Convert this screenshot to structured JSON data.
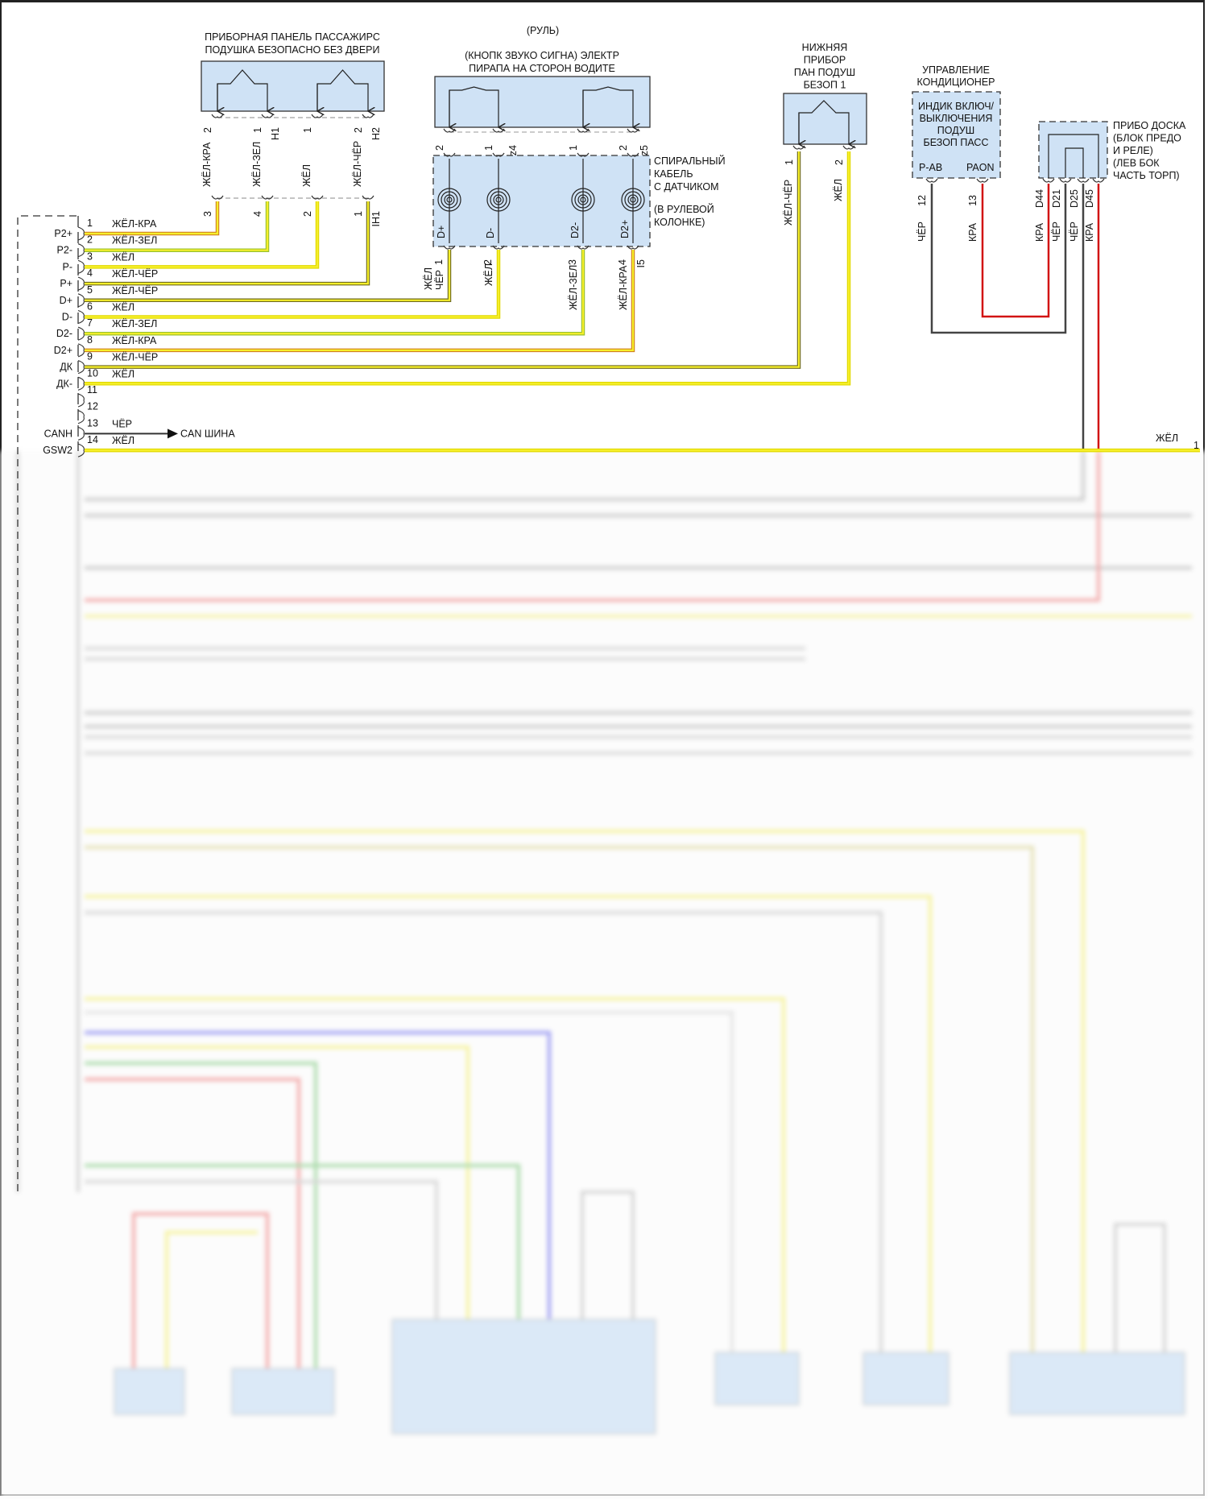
{
  "colors": {
    "box_fill": "#cfe2f5",
    "yellow": "#f2ea1c",
    "red": "#d21414",
    "black": "#444444",
    "tracer_red": "#d08020",
    "tracer_green": "#98c030",
    "tracer_black": "#6e6a20"
  },
  "passenger_panel": {
    "title_lines": [
      "ПРИБОРНАЯ ПАНЕЛЬ ПАССАЖИРС",
      "ПОДУШКА БЕЗОПАСНО БЕЗ ДВЕРИ"
    ],
    "upper_pins": [
      "2",
      "1",
      "1",
      "2"
    ],
    "upper_connectors": [
      "H1",
      "H2"
    ],
    "lower_pins": [
      "3",
      "4",
      "2",
      "1"
    ],
    "lower_connector": "IH1",
    "wires": [
      "ЖЁЛ-КРА",
      "ЖЁЛ-ЗЕЛ",
      "ЖЁЛ",
      "ЖЁЛ-ЧЁР"
    ]
  },
  "steering": {
    "title": "(РУЛЬ)",
    "horn_title_lines": [
      "(КНОПК ЗВУКО СИГНА) ЭЛЕКТР",
      "ПИРАПА НА СТОРОН ВОДИТЕ"
    ],
    "horn_pins": [
      "2",
      "1",
      "1",
      "2"
    ],
    "horn_connectors": [
      "z4",
      "z5"
    ]
  },
  "clock_spring": {
    "label_lines": [
      "СПИРАЛЬНЫЙ",
      "КАБЕЛЬ",
      "С ДАТЧИКОМ",
      "(В РУЛЕВОЙ",
      "КОЛОНКЕ)"
    ],
    "terminals": [
      "D+",
      "D-",
      "D2-",
      "D2+"
    ],
    "pins": [
      "1",
      "2",
      "3",
      "4"
    ],
    "connector": "I5",
    "wires": [
      [
        "ЖЁЛ",
        "ЧЁР"
      ],
      [
        "ЖЁЛ"
      ],
      [
        "ЖЁЛ-ЗЕЛ"
      ],
      [
        "ЖЁЛ-КРА"
      ]
    ]
  },
  "knee_airbag": {
    "title_lines": [
      "НИЖНЯЯ",
      "ПРИБОР",
      "ПАН ПОДУШ",
      "БЕЗОП 1"
    ],
    "pins": [
      "1",
      "2"
    ],
    "wires": [
      "ЖЁЛ-ЧЁР",
      "ЖЁЛ"
    ]
  },
  "ac_control": {
    "title_lines": [
      "УПРАВЛЕНИЕ",
      "КОНДИЦИОНЕР"
    ],
    "inner_lines": [
      "ИНДИК ВКЛЮЧ/",
      "ВЫКЛЮЧЕНИЯ",
      "ПОДУШ",
      "БЕЗОП ПАСС"
    ],
    "terminals": [
      "P-AB",
      "PAON"
    ],
    "pins": [
      "12",
      "13"
    ],
    "wires": [
      "ЧЁР",
      "КРА"
    ]
  },
  "instrument_panel": {
    "label_lines": [
      "ПРИБО ДОСКА",
      "(БЛОК ПРЕДО",
      "И РЕЛЕ)",
      "(ЛЕВ БОК",
      "ЧАСТЬ ТОРП)"
    ],
    "pins": [
      "D44",
      "D21",
      "D25",
      "D45"
    ],
    "wires": [
      "КРА",
      "ЧЁР",
      "ЧЁР",
      "КРА"
    ]
  },
  "airbag_module_connector": {
    "rows": [
      {
        "pin": "1",
        "terminal": "P2+",
        "wire": "ЖЁЛ-КРА"
      },
      {
        "pin": "2",
        "terminal": "P2-",
        "wire": "ЖЁЛ-ЗЕЛ"
      },
      {
        "pin": "3",
        "terminal": "P-",
        "wire": "ЖЁЛ"
      },
      {
        "pin": "4",
        "terminal": "P+",
        "wire": "ЖЁЛ-ЧЁР"
      },
      {
        "pin": "5",
        "terminal": "D+",
        "wire": "ЖЁЛ-ЧЁР"
      },
      {
        "pin": "6",
        "terminal": "D-",
        "wire": "ЖЁЛ"
      },
      {
        "pin": "7",
        "terminal": "D2-",
        "wire": "ЖЁЛ-ЗЕЛ"
      },
      {
        "pin": "8",
        "terminal": "D2+",
        "wire": "ЖЁЛ-КРА"
      },
      {
        "pin": "9",
        "terminal": "ДК",
        "wire": "ЖЁЛ-ЧЁР"
      },
      {
        "pin": "10",
        "terminal": "ДК-",
        "wire": "ЖЁЛ"
      },
      {
        "pin": "11",
        "terminal": "",
        "wire": ""
      },
      {
        "pin": "12",
        "terminal": "",
        "wire": ""
      },
      {
        "pin": "13",
        "terminal": "CANH",
        "wire": "ЧЁР"
      },
      {
        "pin": "14",
        "terminal": "GSW2",
        "wire": "ЖЁЛ"
      }
    ],
    "can_bus_label": "CAN ШИНА"
  },
  "right_edge": {
    "wire": "ЖЁЛ",
    "pin": "1"
  }
}
